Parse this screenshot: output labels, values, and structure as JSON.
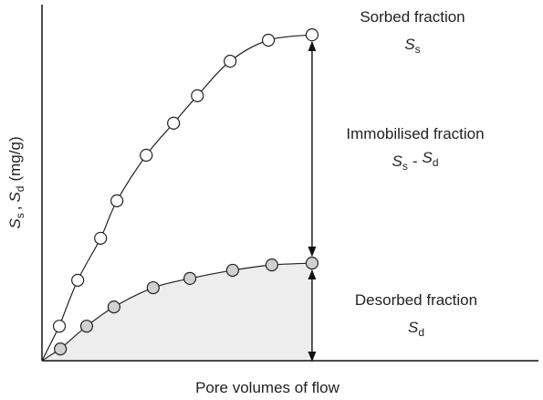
{
  "chart_data": {
    "type": "line",
    "xlabel": "Pore volumes of flow",
    "ylabel_parts": [
      "S",
      "s",
      ",",
      "S",
      "d",
      "(mg/g)"
    ],
    "xlim": [
      0,
      100
    ],
    "ylim": [
      0,
      100
    ],
    "series": [
      {
        "color": "#ffffff",
        "x": [
          3.5,
          7.2,
          11.8,
          15.1,
          21.0,
          26.5,
          31.3,
          37.9,
          45.6,
          54.4
        ],
        "values": [
          9.7,
          22.6,
          34.4,
          44.9,
          57.7,
          66.7,
          74.4,
          84.1,
          90.0,
          91.5
        ]
      },
      {
        "color": "#d0d0d0",
        "area_color": "#ededed",
        "x": [
          3.7,
          9.0,
          14.5,
          22.4,
          29.8,
          38.4,
          46.3,
          54.4
        ],
        "values": [
          3.3,
          9.7,
          15.1,
          20.5,
          23.1,
          25.4,
          26.9,
          27.4
        ]
      }
    ],
    "annotations": [
      {
        "title": "Sorbed fraction",
        "symbol": [
          "S",
          "s"
        ]
      },
      {
        "title": "Immobilised fraction",
        "symbol": [
          "S",
          "s",
          "-",
          "S",
          "d"
        ]
      },
      {
        "title": "Desorbed fraction",
        "symbol": [
          "S",
          "d"
        ]
      }
    ]
  }
}
